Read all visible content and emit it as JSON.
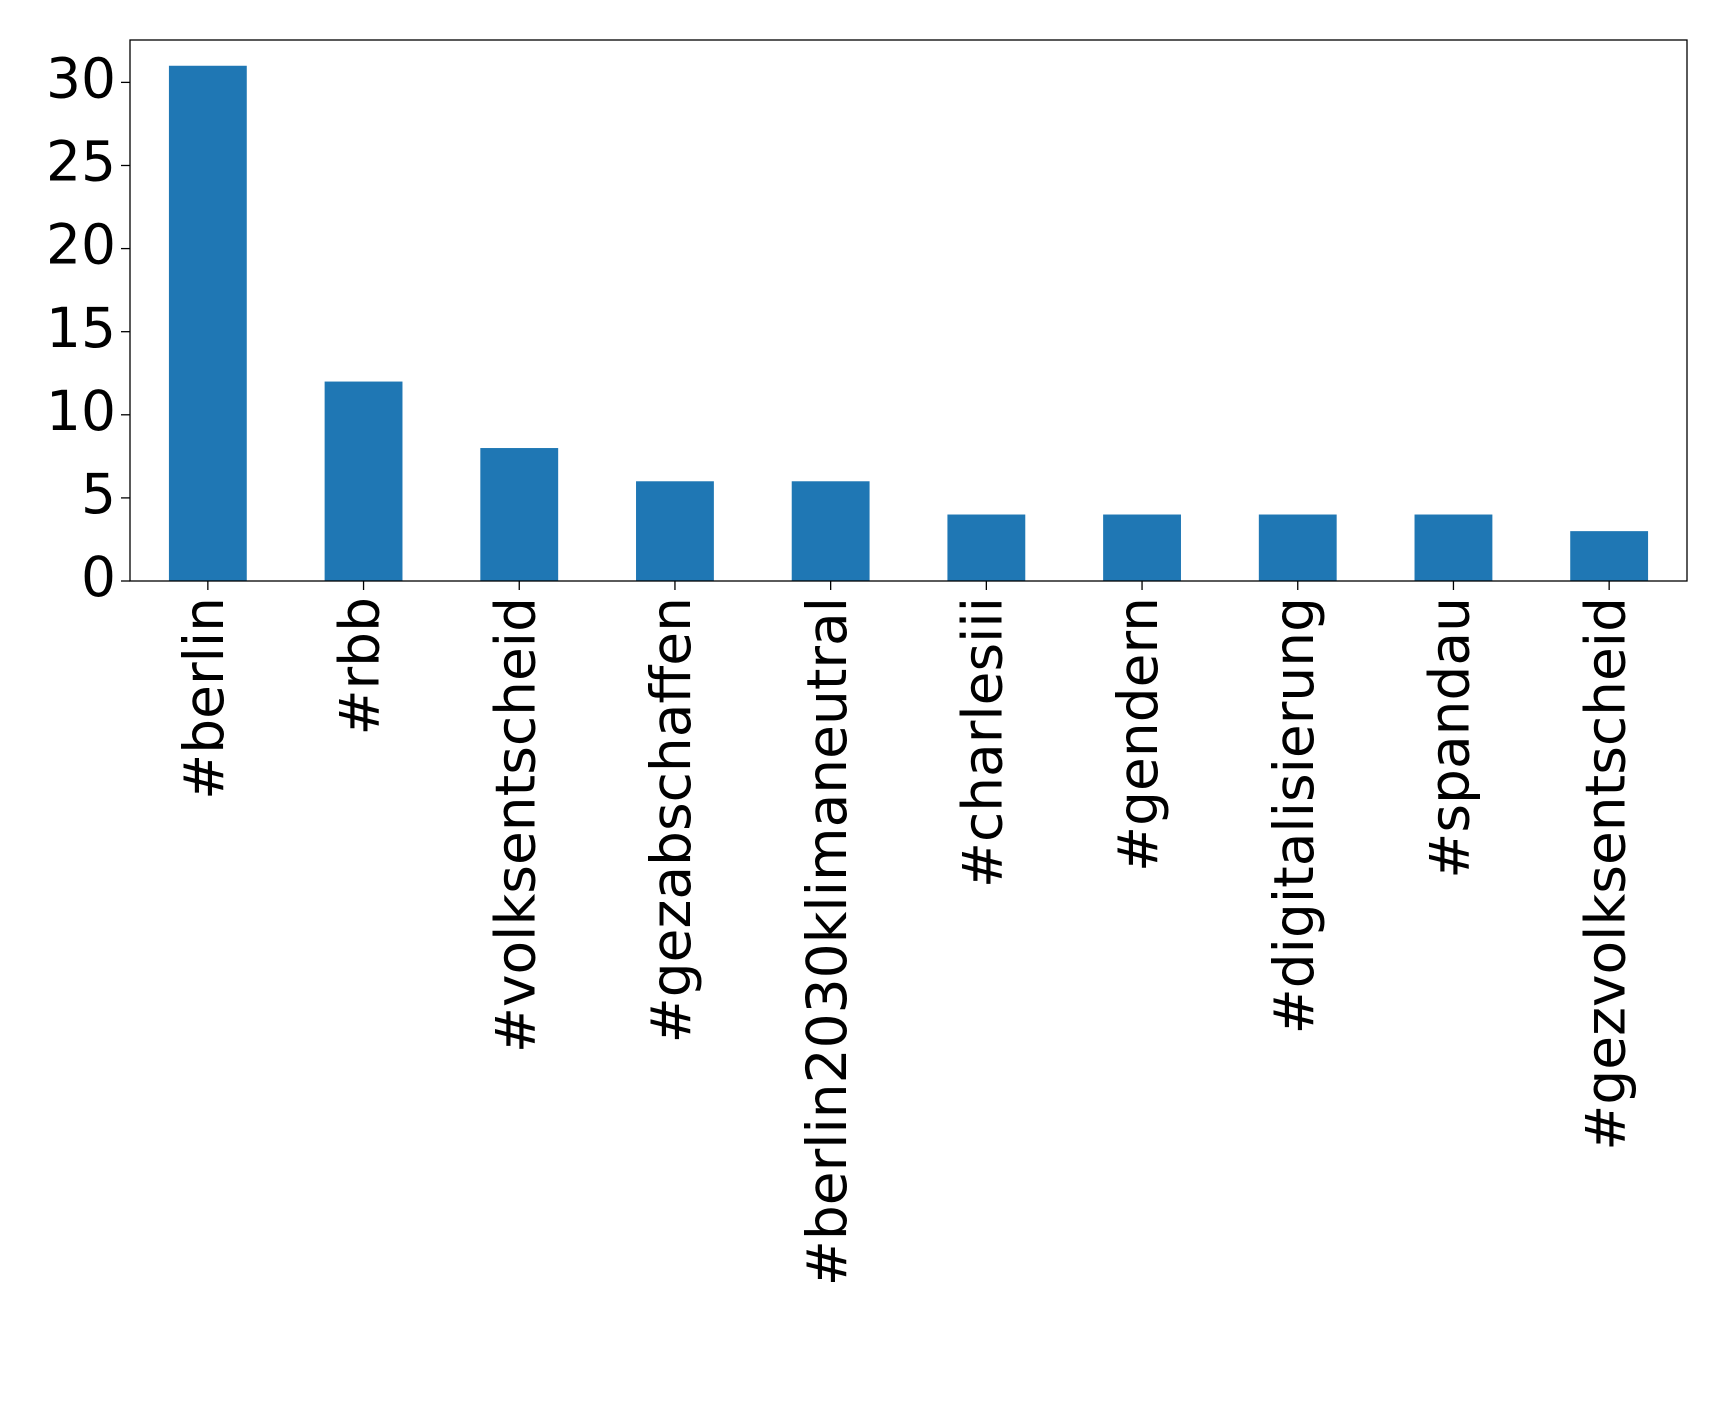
{
  "chart_data": {
    "type": "bar",
    "categories": [
      "#berlin",
      "#rbb",
      "#volksentscheid",
      "#gezabschaffen",
      "#berlin2030klimaneutral",
      "#charlesiii",
      "#gendern",
      "#digitalisierung",
      "#spandau",
      "#gezvolksentscheid"
    ],
    "values": [
      31,
      12,
      8,
      6,
      6,
      4,
      4,
      4,
      4,
      3
    ],
    "color": "#1f77b4",
    "ylim": [
      0,
      32.55
    ],
    "yticks": [
      0,
      5,
      10,
      15,
      20,
      25,
      30
    ],
    "grid": false
  }
}
